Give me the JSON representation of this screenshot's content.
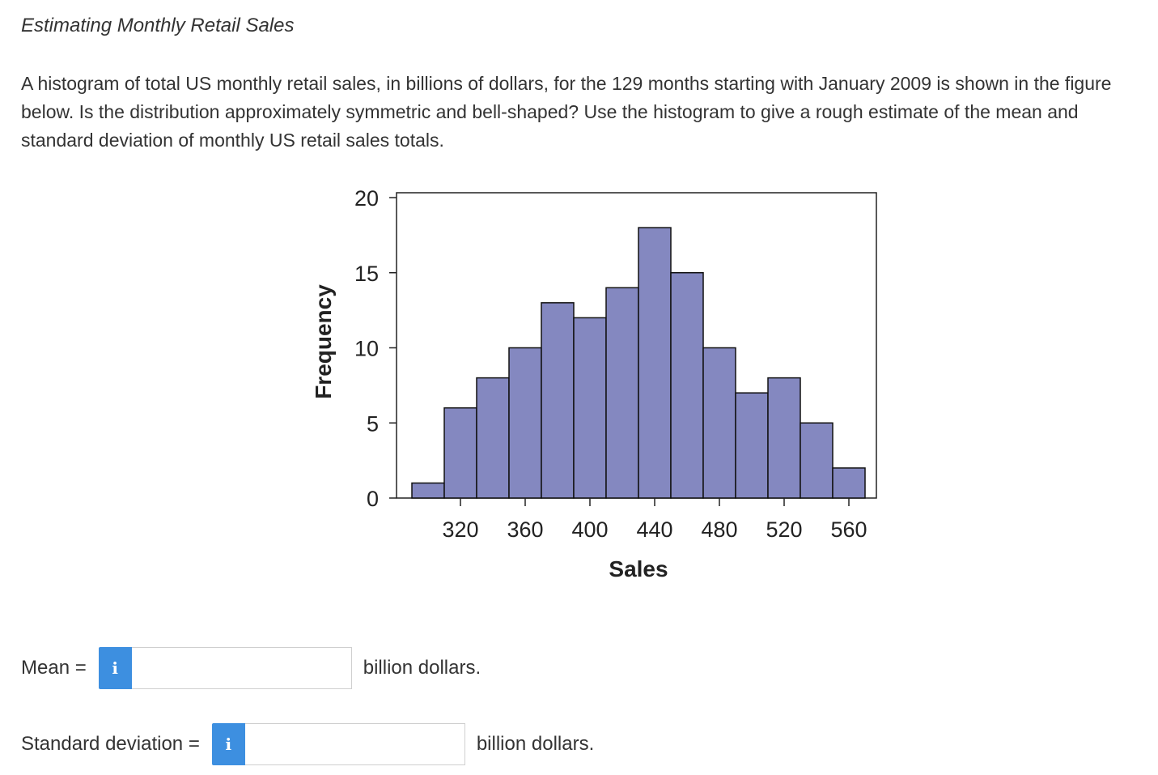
{
  "problem": {
    "title": "Estimating Monthly Retail Sales",
    "question": "A histogram of total US monthly retail sales, in billions of dollars, for the 129 months starting with January 2009 is shown in the figure below. Is the distribution approximately symmetric and bell-shaped? Use the histogram to give a rough estimate of the mean and standard deviation of monthly US retail sales totals."
  },
  "chart_data": {
    "type": "bar",
    "xlabel": "Sales",
    "ylabel": "Frequency",
    "bin_width": 20,
    "bins": [
      {
        "start": 290,
        "end": 310,
        "count": 1
      },
      {
        "start": 310,
        "end": 330,
        "count": 6
      },
      {
        "start": 330,
        "end": 350,
        "count": 8
      },
      {
        "start": 350,
        "end": 370,
        "count": 10
      },
      {
        "start": 370,
        "end": 390,
        "count": 13
      },
      {
        "start": 390,
        "end": 410,
        "count": 12
      },
      {
        "start": 410,
        "end": 430,
        "count": 14
      },
      {
        "start": 430,
        "end": 450,
        "count": 18
      },
      {
        "start": 450,
        "end": 470,
        "count": 15
      },
      {
        "start": 470,
        "end": 490,
        "count": 10
      },
      {
        "start": 490,
        "end": 510,
        "count": 7
      },
      {
        "start": 510,
        "end": 530,
        "count": 8
      },
      {
        "start": 530,
        "end": 550,
        "count": 5
      },
      {
        "start": 550,
        "end": 570,
        "count": 2
      }
    ],
    "x_ticks": [
      320,
      360,
      400,
      440,
      480,
      520,
      560
    ],
    "y_ticks": [
      0,
      5,
      10,
      15,
      20
    ],
    "xlim": [
      290,
      570
    ],
    "ylim": [
      0,
      20
    ],
    "bar_color": "#8488c0",
    "grid": false
  },
  "answers": {
    "mean_label": "Mean =",
    "mean_value": "",
    "mean_unit": "billion dollars.",
    "sd_label": "Standard deviation =",
    "sd_value": "",
    "sd_unit": "billion dollars.",
    "info_icon": "i"
  },
  "colors": {
    "info_button": "#3d8fe0"
  }
}
